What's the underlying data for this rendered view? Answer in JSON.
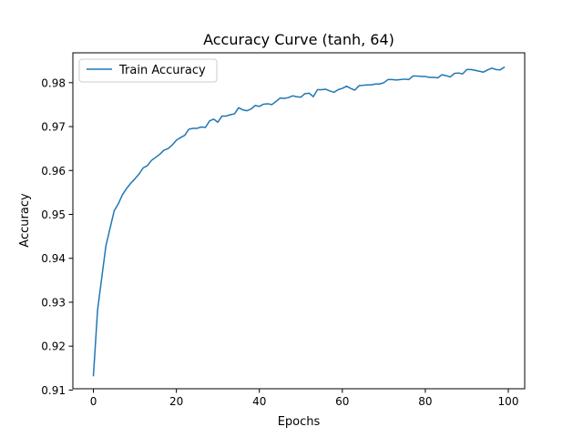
{
  "chart_data": {
    "type": "line",
    "title": "Accuracy Curve (tanh, 64)",
    "xlabel": "Epochs",
    "ylabel": "Accuracy",
    "xlim": [
      -4.95,
      103.95
    ],
    "ylim": [
      0.9103,
      0.9868
    ],
    "xticks": [
      0,
      20,
      40,
      60,
      80,
      100
    ],
    "yticks": [
      0.91,
      0.92,
      0.93,
      0.94,
      0.95,
      0.96,
      0.97,
      0.98
    ],
    "xtick_labels": [
      "0",
      "20",
      "40",
      "60",
      "80",
      "100"
    ],
    "ytick_labels": [
      "0.91",
      "0.92",
      "0.93",
      "0.94",
      "0.95",
      "0.96",
      "0.97",
      "0.98"
    ],
    "grid": false,
    "legend": {
      "placement": "top-left",
      "entries": [
        "Train Accuracy"
      ]
    },
    "series": [
      {
        "name": "Train Accuracy",
        "color": "#1f77b4",
        "x": [
          0,
          1,
          2,
          3,
          4,
          5,
          6,
          7,
          8,
          9,
          10,
          11,
          12,
          13,
          14,
          15,
          16,
          17,
          18,
          19,
          20,
          21,
          22,
          23,
          24,
          25,
          26,
          27,
          28,
          29,
          30,
          31,
          32,
          33,
          34,
          35,
          36,
          37,
          38,
          39,
          40,
          41,
          42,
          43,
          44,
          45,
          46,
          47,
          48,
          49,
          50,
          51,
          52,
          53,
          54,
          55,
          56,
          57,
          58,
          59,
          60,
          61,
          62,
          63,
          64,
          65,
          66,
          67,
          68,
          69,
          70,
          71,
          72,
          73,
          74,
          75,
          76,
          77,
          78,
          79,
          80,
          81,
          82,
          83,
          84,
          85,
          86,
          87,
          88,
          89,
          90,
          91,
          92,
          93,
          94,
          95,
          96,
          97,
          98,
          99
        ],
        "values": [
          0.9133,
          0.9282,
          0.9355,
          0.9428,
          0.9468,
          0.9508,
          0.9524,
          0.9545,
          0.9559,
          0.9571,
          0.9581,
          0.9592,
          0.9606,
          0.9611,
          0.9623,
          0.963,
          0.9637,
          0.9646,
          0.965,
          0.9658,
          0.9669,
          0.9675,
          0.968,
          0.9694,
          0.9696,
          0.9696,
          0.9699,
          0.9698,
          0.9713,
          0.9717,
          0.971,
          0.9724,
          0.9724,
          0.9727,
          0.9729,
          0.9743,
          0.9738,
          0.9736,
          0.974,
          0.9748,
          0.9746,
          0.9751,
          0.9752,
          0.975,
          0.9757,
          0.9765,
          0.9764,
          0.9766,
          0.977,
          0.9768,
          0.9767,
          0.9775,
          0.9776,
          0.9768,
          0.9784,
          0.9784,
          0.9785,
          0.9781,
          0.9778,
          0.9784,
          0.9787,
          0.9792,
          0.9787,
          0.9783,
          0.9793,
          0.9794,
          0.9795,
          0.9795,
          0.9797,
          0.9797,
          0.98,
          0.9807,
          0.9807,
          0.9806,
          0.9807,
          0.9808,
          0.9807,
          0.9815,
          0.9815,
          0.9814,
          0.9814,
          0.9812,
          0.9812,
          0.9811,
          0.9818,
          0.9816,
          0.9813,
          0.9821,
          0.9822,
          0.982,
          0.983,
          0.983,
          0.9828,
          0.9826,
          0.9824,
          0.9829,
          0.9833,
          0.983,
          0.9829,
          0.9835
        ]
      }
    ]
  }
}
